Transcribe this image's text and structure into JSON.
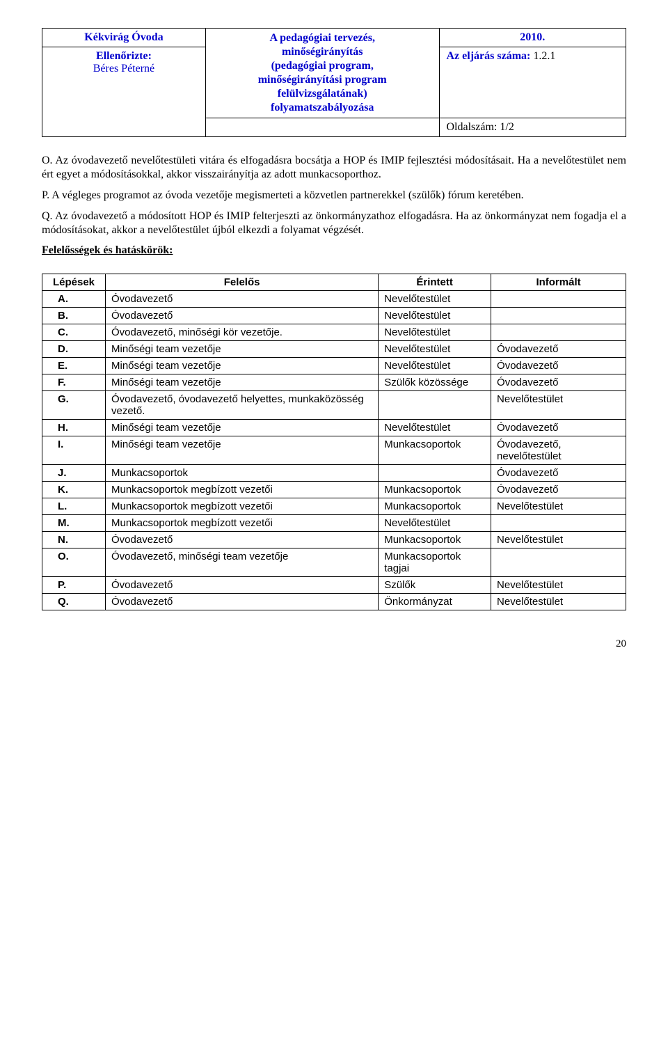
{
  "header": {
    "org": "Kékvirág Óvoda",
    "checked_label": "Ellenőrizte:",
    "checked_name": "Béres Péterné",
    "center": "A pedagógiai tervezés,\nminőségirányítás\n(pedagógiai program,\nminőségirányítási program\nfelülvizsgálatának)\nfolyamatszabályozása",
    "year": "2010.",
    "proc_label": "Az eljárás száma:",
    "proc_value": "1.2.1",
    "page_label": "Oldalszám:",
    "page_value": "1/2"
  },
  "paragraphs": {
    "o_label": "O.",
    "o_text": " Az óvodavezető nevelőtestületi vitára és elfogadásra bocsátja a HOP és IMIP fejlesztési módosításait. Ha a nevelőtestület nem ért egyet a módosításokkal, akkor visszairányítja az adott munkacsoporthoz.",
    "p_label": "P.",
    "p_text": " A végleges programot az óvoda vezetője megismerteti a közvetlen partnerekkel (szülők) fórum keretében.",
    "q_label": "Q.",
    "q_text": " Az óvodavezető a módosított HOP és IMIP felterjeszti az önkormányzathoz elfogadásra. Ha az önkormányzat nem fogadja el a módosításokat, akkor a nevelőtestület újból elkezdi a folyamat végzését."
  },
  "section_heading": "Felelősségek és hatáskörök:",
  "table": {
    "columns": [
      "Lépések",
      "Felelős",
      "Érintett",
      "Informált"
    ],
    "rows": [
      [
        "A.",
        "Óvodavezető",
        "Nevelőtestület",
        ""
      ],
      [
        "B.",
        "Óvodavezető",
        "Nevelőtestület",
        ""
      ],
      [
        "C.",
        "Óvodavezető, minőségi kör vezetője.",
        "Nevelőtestület",
        ""
      ],
      [
        "D.",
        "Minőségi team vezetője",
        "Nevelőtestület",
        "Óvodavezető"
      ],
      [
        "E.",
        "Minőségi team vezetője",
        "Nevelőtestület",
        "Óvodavezető"
      ],
      [
        "F.",
        "Minőségi team vezetője",
        "Szülők közössége",
        "Óvodavezető"
      ],
      [
        "G.",
        "Óvodavezető, óvodavezető helyettes, munkaközösség vezető.",
        "",
        "Nevelőtestület"
      ],
      [
        "H.",
        "Minőségi team vezetője",
        "Nevelőtestület",
        "Óvodavezető"
      ],
      [
        "I.",
        "Minőségi team vezetője",
        "Munkacsoportok",
        "Óvodavezető, nevelőtestület"
      ],
      [
        "J.",
        "Munkacsoportok",
        "",
        "Óvodavezető"
      ],
      [
        "K.",
        "Munkacsoportok megbízott vezetői",
        "Munkacsoportok",
        "Óvodavezető"
      ],
      [
        "L.",
        "Munkacsoportok megbízott vezetői",
        "Munkacsoportok",
        "Nevelőtestület"
      ],
      [
        "M.",
        "Munkacsoportok megbízott vezetői",
        "Nevelőtestület",
        ""
      ],
      [
        "N.",
        "Óvodavezető",
        "Munkacsoportok",
        "Nevelőtestület"
      ],
      [
        "O.",
        "Óvodavezető, minőségi team vezetője",
        "Munkacsoportok tagjai",
        ""
      ],
      [
        "P.",
        "Óvodavezető",
        "Szülők",
        "Nevelőtestület"
      ],
      [
        "Q.",
        "Óvodavezető",
        "Önkormányzat",
        "Nevelőtestület"
      ]
    ]
  },
  "page_number": "20"
}
